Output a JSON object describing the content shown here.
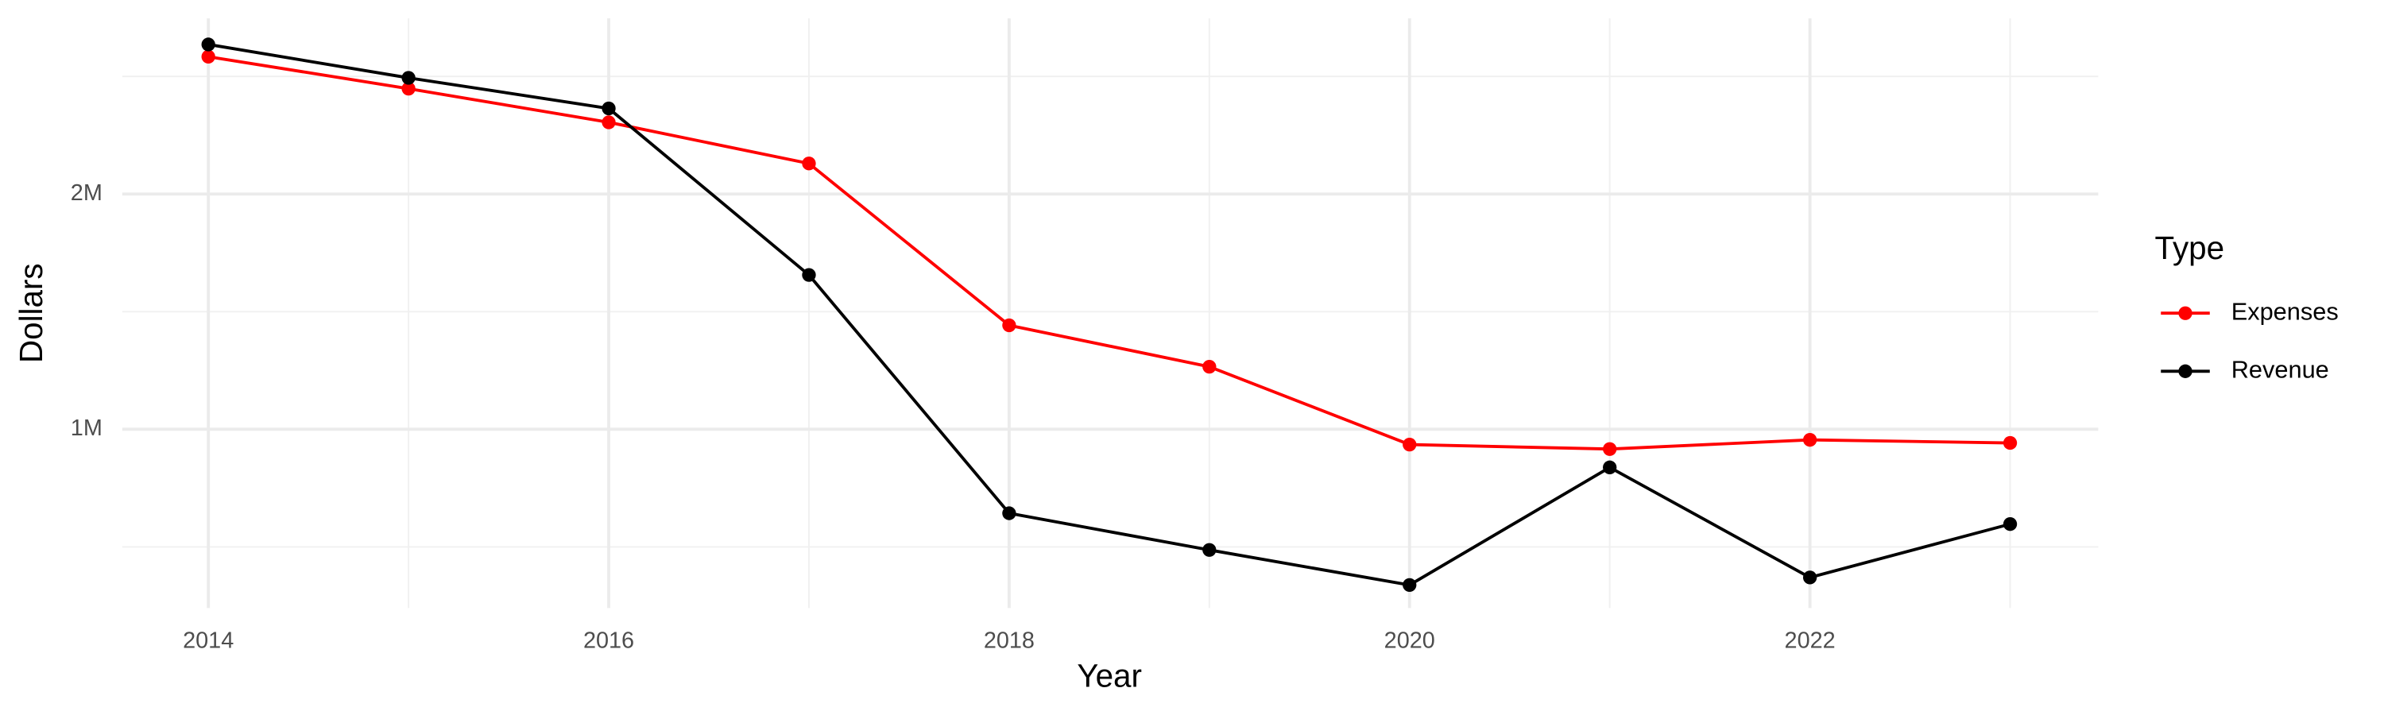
{
  "chart_data": {
    "type": "line",
    "x_label": "Year",
    "y_label": "Dollars",
    "legend_title": "Type",
    "legend_position": "right",
    "x": [
      2014,
      2015,
      2016,
      2017,
      2018,
      2019,
      2020,
      2021,
      2022,
      2023
    ],
    "series": [
      {
        "name": "Expenses",
        "color": "#ff0000",
        "values": [
          2584000,
          2448000,
          2305000,
          2130000,
          1442000,
          1266000,
          935000,
          916000,
          955000,
          942000
        ]
      },
      {
        "name": "Revenue",
        "color": "#000000",
        "values": [
          2636000,
          2494000,
          2364000,
          1656000,
          643000,
          487000,
          338000,
          838000,
          370000,
          597000
        ]
      }
    ],
    "xlim": [
      2013.57,
      2023.44
    ],
    "xticks": [
      2014,
      2016,
      2018,
      2020,
      2022
    ],
    "ylim": [
      240000,
      2747000
    ],
    "yticks": [
      {
        "value": 1000000,
        "label": "1M"
      },
      {
        "value": 2000000,
        "label": "2M"
      }
    ],
    "grid": true
  }
}
